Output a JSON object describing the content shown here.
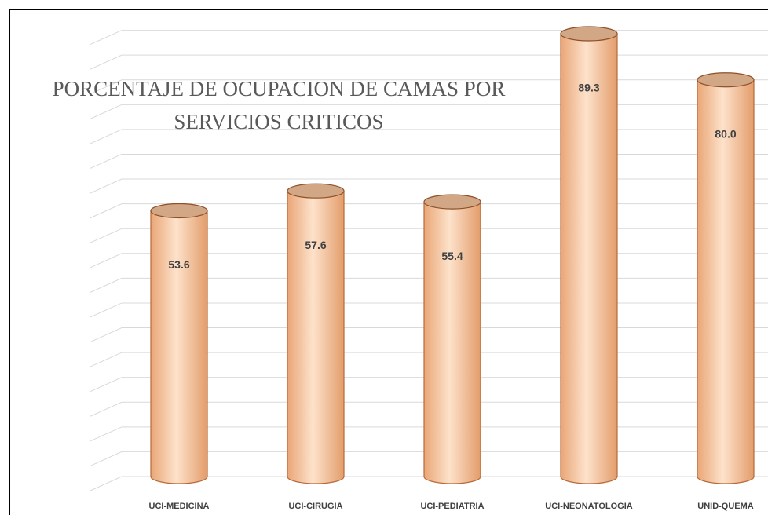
{
  "chart_data": {
    "type": "bar3d",
    "title_lines": [
      "PORCENTAJE DE OCUPACION DE CAMAS POR",
      "SERVICIOS CRITICOS"
    ],
    "categories": [
      "UCI-MEDICINA",
      "UCI-CIRUGIA",
      "UCI-PEDIATRIA",
      "UCI-NEONATOLOGIA",
      "UNID-QUEMA"
    ],
    "values": [
      53.6,
      57.6,
      55.4,
      89.3,
      80.0
    ],
    "value_labels": [
      "53.6",
      "57.6",
      "55.4",
      "89.3",
      "80.0"
    ],
    "color": "#f7c49c",
    "ylim": [
      0,
      95
    ],
    "yticks": [
      0,
      5,
      10,
      15,
      20,
      25,
      30,
      35,
      40,
      45,
      50,
      55,
      60,
      65,
      70,
      75,
      80,
      85,
      90
    ],
    "grid": true,
    "tick_labels": false
  }
}
